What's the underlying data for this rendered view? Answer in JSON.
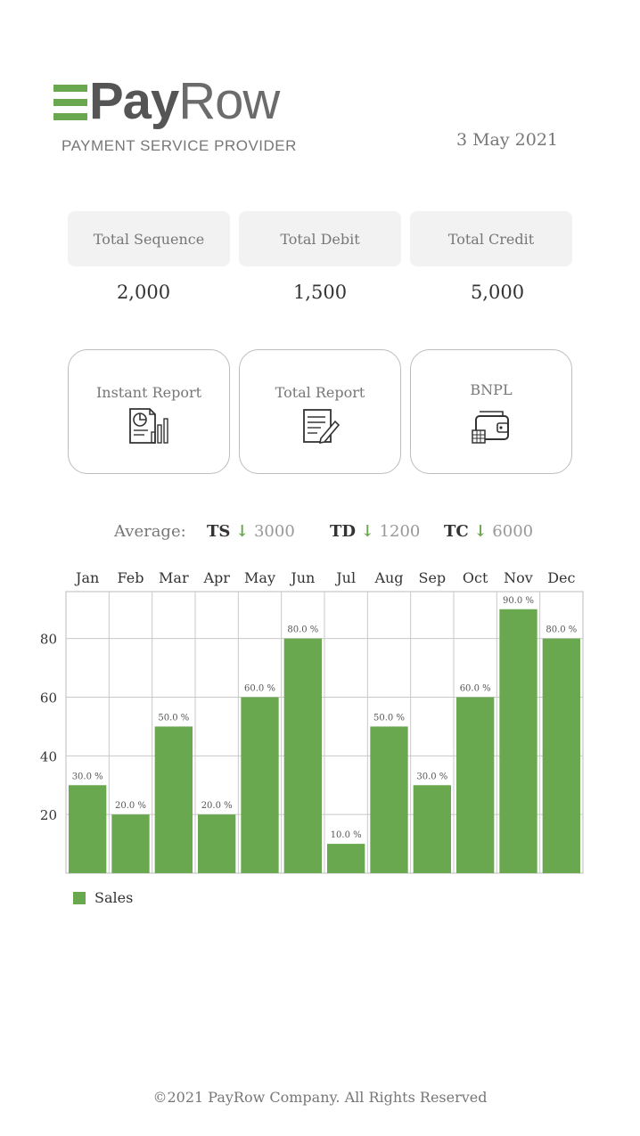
{
  "brand": {
    "name_part1": "Pay",
    "name_part2": "Row",
    "tagline": "PAYMENT SERVICE PROVIDER",
    "accent_color": "#6aa84f"
  },
  "date": "3 May 2021",
  "stats": [
    {
      "label": "Total Sequence",
      "value": "2,000"
    },
    {
      "label": "Total Debit",
      "value": "1,500"
    },
    {
      "label": "Total Credit",
      "value": "5,000"
    }
  ],
  "reports": [
    {
      "label": "Instant Report",
      "icon": "report-chart-icon"
    },
    {
      "label": "Total Report",
      "icon": "document-edit-icon"
    },
    {
      "label": "BNPL",
      "icon": "wallet-icon"
    }
  ],
  "averages": {
    "label": "Average:",
    "items": [
      {
        "key": "TS",
        "arrow": "↓",
        "value": "3000"
      },
      {
        "key": "TD",
        "arrow": "↓",
        "value": "1200"
      },
      {
        "key": "TC",
        "arrow": "↓",
        "value": "6000"
      }
    ]
  },
  "chart_data": {
    "type": "bar",
    "categories": [
      "Jan",
      "Feb",
      "Mar",
      "Apr",
      "May",
      "Jun",
      "Jul",
      "Aug",
      "Sep",
      "Oct",
      "Nov",
      "Dec"
    ],
    "series": [
      {
        "name": "Sales",
        "values": [
          30,
          20,
          50,
          20,
          60,
          80,
          10,
          50,
          30,
          60,
          90,
          80
        ],
        "color": "#6aa84f"
      }
    ],
    "data_labels": [
      "30.0 %",
      "20.0 %",
      "50.0 %",
      "20.0 %",
      "60.0 %",
      "80.0 %",
      "10.0 %",
      "50.0 %",
      "30.0 %",
      "60.0 %",
      "90.0 %",
      "80.0 %"
    ],
    "yticks": [
      20,
      40,
      60,
      80
    ],
    "ylim": [
      0,
      96
    ],
    "grid": true,
    "legend_position": "bottom-left"
  },
  "footer": "©2021 PayRow Company. All Rights Reserved"
}
